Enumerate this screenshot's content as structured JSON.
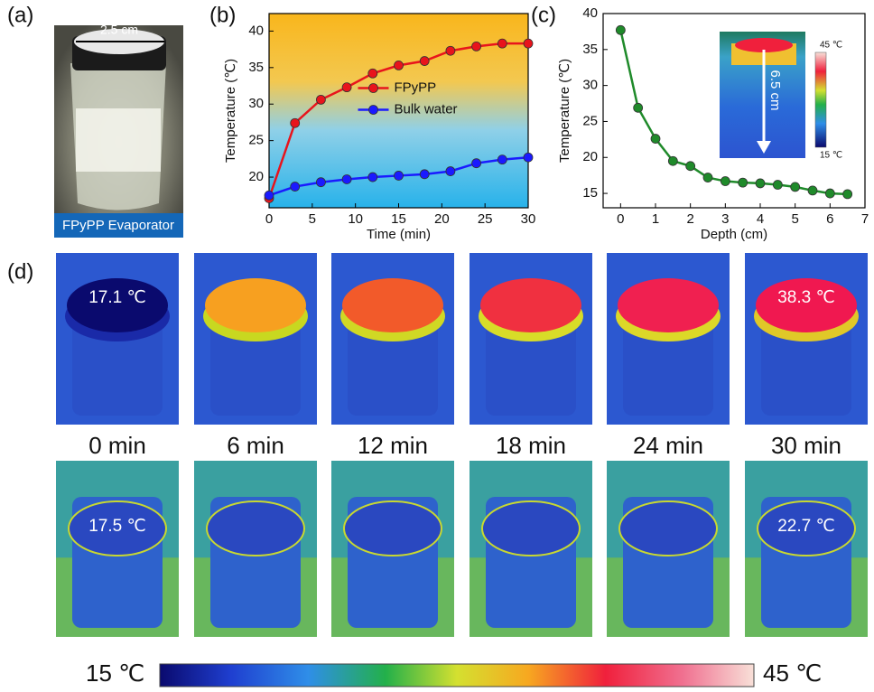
{
  "panel_labels": [
    "(a)",
    "(b)",
    "(c)",
    "(d)"
  ],
  "photo": {
    "dimension": "2.5 cm",
    "caption": "FPyPP Evaporator"
  },
  "chart_data": [
    {
      "type": "line",
      "x_label": "Time (min)",
      "y_label": "Temperature (℃)",
      "x": [
        0,
        3,
        6,
        9,
        12,
        15,
        18,
        21,
        24,
        27,
        30
      ],
      "series": [
        {
          "name": "FPyPP",
          "color": "#e8141c",
          "values": [
            17.1,
            27.4,
            30.6,
            32.3,
            34.2,
            35.3,
            35.9,
            37.3,
            37.9,
            38.3,
            38.3
          ]
        },
        {
          "name": "Bulk water",
          "color": "#1a1aff",
          "values": [
            17.5,
            18.7,
            19.3,
            19.7,
            20.0,
            20.2,
            20.4,
            20.8,
            21.9,
            22.4,
            22.7
          ]
        }
      ],
      "xlim": [
        0,
        30
      ],
      "xticks": [
        0,
        5,
        10,
        15,
        20,
        25,
        30
      ],
      "ylim": [
        15.8,
        42.4
      ],
      "yticks": [
        20,
        25,
        30,
        35,
        40
      ],
      "legend": "center"
    },
    {
      "type": "line",
      "x_label": "Depth (cm)",
      "y_label": "Temperature (℃)",
      "x": [
        0,
        0.5,
        1,
        1.5,
        2,
        2.5,
        3,
        3.5,
        4,
        4.5,
        5,
        5.5,
        6,
        6.5
      ],
      "values": [
        37.7,
        26.9,
        22.6,
        19.5,
        18.8,
        17.2,
        16.7,
        16.5,
        16.4,
        16.2,
        15.9,
        15.4,
        15.0,
        14.9
      ],
      "color": "#1f8a2a",
      "xlim": [
        -0.5,
        7
      ],
      "xticks": [
        0,
        1,
        2,
        3,
        4,
        5,
        6,
        7
      ],
      "ylim": [
        13,
        40
      ],
      "yticks": [
        15,
        20,
        25,
        30,
        35,
        40
      ]
    }
  ],
  "inset": {
    "depth_label": "6.5 cm",
    "max_label": "45 ℃",
    "min_label": "15 ℃"
  },
  "thermal": {
    "times": [
      "0 min",
      "6 min",
      "12 min",
      "18 min",
      "24 min",
      "30 min"
    ],
    "top_first": "17.1 ℃",
    "top_last": "38.3 ℃",
    "bottom_first": "17.5 ℃",
    "bottom_last": "22.7 ℃"
  },
  "colorbar": {
    "min_label": "15 ℃",
    "max_label": "45 ℃"
  }
}
